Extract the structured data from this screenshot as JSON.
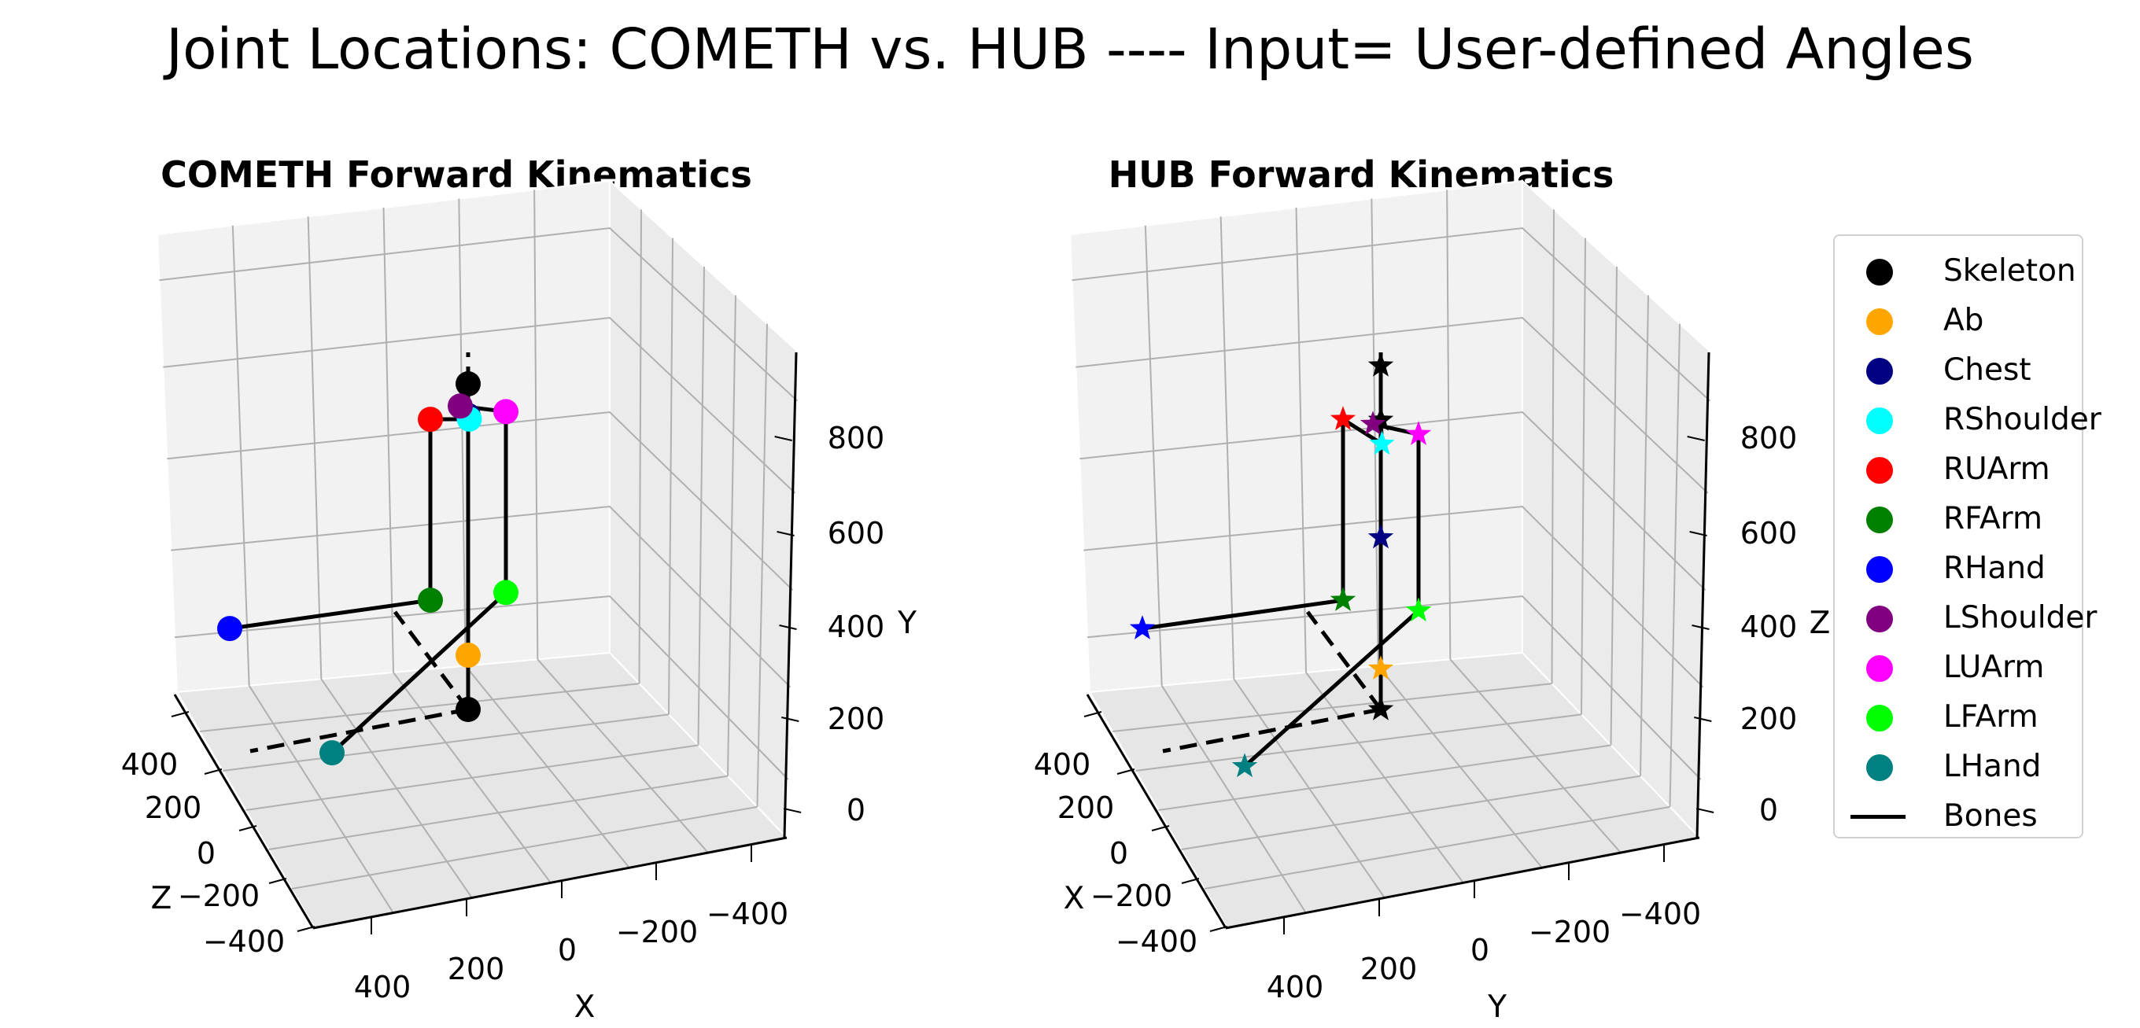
{
  "title": "Joint Locations: COMETH vs. HUB ---- Input= User-defined Angles",
  "chart_data": [
    {
      "type": "scatter3d",
      "title": "COMETH Forward Kinematics",
      "marker": "circle",
      "axes": {
        "x_label": "X",
        "y_label": "Y",
        "z_label": "Z",
        "x_ticks": [
          "400",
          "200",
          "0",
          "−200",
          "−400"
        ],
        "y_ticks": [
          "0",
          "200",
          "400",
          "600",
          "800"
        ],
        "z_ticks": [
          "400",
          "200",
          "0",
          "−200",
          "−400"
        ],
        "vertical_axis": "Y",
        "grid": true
      },
      "joints": [
        {
          "name": "Skeleton",
          "x": 0,
          "y": 0,
          "z": 0
        },
        {
          "name": "Skeleton",
          "x": 0,
          "y": 720,
          "z": 0
        },
        {
          "name": "Ab",
          "x": 0,
          "y": 120,
          "z": 0
        },
        {
          "name": "Chest",
          "x": 0,
          "y": 650,
          "z": 0
        },
        {
          "name": "RShoulder",
          "x": 10,
          "y": 665,
          "z": -40
        },
        {
          "name": "RUArm",
          "x": 80,
          "y": 700,
          "z": -80
        },
        {
          "name": "RFArm",
          "x": 80,
          "y": 300,
          "z": -80
        },
        {
          "name": "RHand",
          "x": 380,
          "y": 300,
          "z": -80
        },
        {
          "name": "LShoulder",
          "x": 0,
          "y": 650,
          "z": 40
        },
        {
          "name": "LUArm",
          "x": -80,
          "y": 600,
          "z": 80
        },
        {
          "name": "LFArm",
          "x": -80,
          "y": 200,
          "z": 80
        },
        {
          "name": "LHand",
          "x": 180,
          "y": -100,
          "z": 80
        }
      ],
      "bones_solid": [
        [
          0,
          2
        ],
        [
          2,
          3
        ],
        [
          3,
          1
        ],
        [
          3,
          4
        ],
        [
          4,
          5
        ],
        [
          5,
          6
        ],
        [
          6,
          7
        ],
        [
          3,
          8
        ],
        [
          8,
          9
        ],
        [
          9,
          10
        ],
        [
          10,
          11
        ]
      ],
      "bones_dashed": [
        [
          1,
          "up"
        ],
        [
          0,
          "ray"
        ],
        [
          0,
          "ray2"
        ]
      ]
    },
    {
      "type": "scatter3d",
      "title": "HUB Forward Kinematics",
      "marker": "star",
      "axes": {
        "x_label": "Y",
        "y_label": "Z",
        "z_label": "X",
        "x_ticks": [
          "400",
          "200",
          "0",
          "−200",
          "−400"
        ],
        "y_ticks": [
          "0",
          "200",
          "400",
          "600",
          "800"
        ],
        "z_ticks": [
          "400",
          "200",
          "0",
          "−200",
          "−400"
        ],
        "vertical_axis": "Z",
        "grid": true
      },
      "joints": [
        {
          "name": "Skeleton",
          "x": 0,
          "y": 0,
          "z": 0
        },
        {
          "name": "Skeleton",
          "x": 0,
          "y": 760,
          "z": 0
        },
        {
          "name": "Skeleton",
          "x": 0,
          "y": 640,
          "z": 0
        },
        {
          "name": "Ab",
          "x": 0,
          "y": 90,
          "z": 0
        },
        {
          "name": "Chest",
          "x": 0,
          "y": 380,
          "z": 0
        },
        {
          "name": "RShoulder",
          "x": 10,
          "y": 610,
          "z": -40
        },
        {
          "name": "RUArm",
          "x": 80,
          "y": 700,
          "z": -80
        },
        {
          "name": "RFArm",
          "x": 80,
          "y": 300,
          "z": -80
        },
        {
          "name": "RHand",
          "x": 380,
          "y": 300,
          "z": -80
        },
        {
          "name": "LShoulder",
          "x": 0,
          "y": 610,
          "z": 40
        },
        {
          "name": "LUArm",
          "x": -80,
          "y": 550,
          "z": 80
        },
        {
          "name": "LFArm",
          "x": -80,
          "y": 160,
          "z": 80
        },
        {
          "name": "LHand",
          "x": 180,
          "y": -130,
          "z": 80
        }
      ]
    }
  ],
  "legend": {
    "items": [
      {
        "label": "Skeleton",
        "color": "#000000",
        "kind": "marker"
      },
      {
        "label": "Ab",
        "color": "#ffa500",
        "kind": "marker"
      },
      {
        "label": "Chest",
        "color": "#000080",
        "kind": "marker"
      },
      {
        "label": "RShoulder",
        "color": "#00ffff",
        "kind": "marker"
      },
      {
        "label": "RUArm",
        "color": "#ff0000",
        "kind": "marker"
      },
      {
        "label": "RFArm",
        "color": "#008000",
        "kind": "marker"
      },
      {
        "label": "RHand",
        "color": "#0000ff",
        "kind": "marker"
      },
      {
        "label": "LShoulder",
        "color": "#800080",
        "kind": "marker"
      },
      {
        "label": "LUArm",
        "color": "#ff00ff",
        "kind": "marker"
      },
      {
        "label": "LFArm",
        "color": "#00ff00",
        "kind": "marker"
      },
      {
        "label": "LHand",
        "color": "#008080",
        "kind": "marker"
      },
      {
        "label": "Bones",
        "color": "#000000",
        "kind": "line"
      }
    ]
  }
}
